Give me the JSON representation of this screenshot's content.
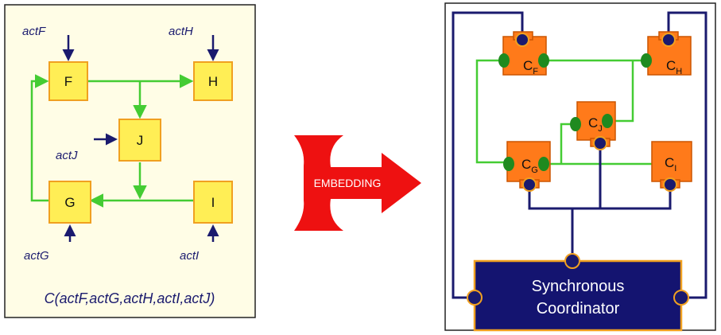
{
  "left_panel": {
    "boxes": {
      "F": "F",
      "H": "H",
      "J": "J",
      "G": "G",
      "I": "I"
    },
    "actions": {
      "actF": "actF",
      "actH": "actH",
      "actJ": "actJ",
      "actG": "actG",
      "actI": "actI"
    },
    "caption": "C(actF,actG,actH,actI,actJ)"
  },
  "arrow": {
    "label": "EMBEDDING"
  },
  "right_panel": {
    "components": {
      "CF": {
        "main": "C",
        "sub": "F"
      },
      "CH": {
        "main": "C",
        "sub": "H"
      },
      "CJ": {
        "main": "C",
        "sub": "J"
      },
      "CG": {
        "main": "C",
        "sub": "G"
      },
      "CI": {
        "main": "C",
        "sub": "I"
      }
    },
    "coordinator": {
      "line1": "Synchronous",
      "line2": "Coordinator"
    }
  },
  "colors": {
    "box_fill": "#ffee55",
    "box_stroke": "#f0a020",
    "flow_green": "#44cc33",
    "action_navy": "#1a1a6e",
    "component_orange": "#ff7a1a",
    "port_green": "#1f8a1f",
    "port_navy": "#1a1a6e",
    "coordinator_fill": "#141470",
    "embed_red": "#ee1111"
  }
}
